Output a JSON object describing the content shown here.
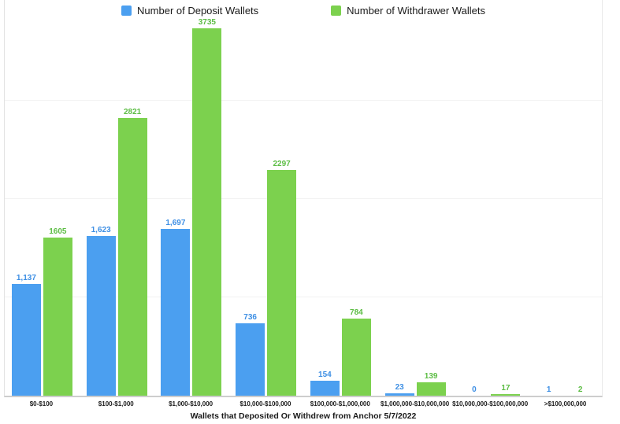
{
  "legend": {
    "items": [
      {
        "label": "Number of Deposit Wallets",
        "color": "#4B9FF0"
      },
      {
        "label": "Number of Withdrawer Wallets",
        "color": "#7CD14E"
      }
    ]
  },
  "chart_data": {
    "type": "bar",
    "title": "",
    "xlabel": "Wallets that Deposited Or Withdrew from Anchor 5/7/2022",
    "ylabel": "",
    "ylim": [
      0,
      4040
    ],
    "gridlines": [
      1000,
      2000,
      3000
    ],
    "grid": "on",
    "legend_position": "top",
    "categories": [
      "$0-$100",
      "$100-$1,000",
      "$1,000-$10,000",
      "$10,000-$100,000",
      "$100,000-$1,000,000",
      "$1,000,000-$10,000,000",
      "$10,000,000-$100,000,000",
      ">$100,000,000"
    ],
    "series": [
      {
        "name": "Number of Deposit Wallets",
        "color": "#4B9FF0",
        "label_color": "#3E8FE4",
        "values": [
          1137,
          1623,
          1697,
          736,
          154,
          23,
          0,
          1
        ],
        "labels": [
          "1,137",
          "1,623",
          "1,697",
          "736",
          "154",
          "23",
          "0",
          "1"
        ]
      },
      {
        "name": "Number of Withdrawer Wallets",
        "color": "#7CD14E",
        "label_color": "#5CBD44",
        "values": [
          1605,
          2821,
          3735,
          2297,
          784,
          139,
          17,
          2
        ],
        "labels": [
          "1605",
          "2821",
          "3735",
          "2297",
          "784",
          "139",
          "17",
          "2"
        ]
      }
    ]
  }
}
